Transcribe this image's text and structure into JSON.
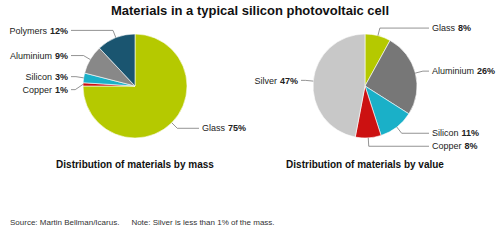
{
  "chart_data": [
    {
      "type": "pie",
      "title": "Materials in a typical silicon photovoltaic cell",
      "subtitle": "Distribution of materials by mass",
      "categories": [
        "Glass",
        "Copper",
        "Silicon",
        "Aluminium",
        "Polymers"
      ],
      "values": [
        75,
        1,
        3,
        9,
        12
      ],
      "value_labels": [
        "75%",
        "1%",
        "3%",
        "9%",
        "12%"
      ],
      "colors": [
        "#b5c900",
        "#cc1111",
        "#1ab0c8",
        "#888888",
        "#1a5570"
      ],
      "data_labels": true,
      "annotations": [
        "Source: Martin Bellman/Icarus.",
        "Note: Silver is less than 1% of the mass."
      ]
    },
    {
      "type": "pie",
      "subtitle": "Distribution of materials by value",
      "categories": [
        "Glass",
        "Aluminium",
        "Silicon",
        "Copper",
        "Silver"
      ],
      "values": [
        8,
        26,
        11,
        8,
        47
      ],
      "value_labels": [
        "8%",
        "26%",
        "11%",
        "8%",
        "47%"
      ],
      "colors": [
        "#b5c900",
        "#777777",
        "#1ab0c8",
        "#cc1111",
        "#c8c8c8"
      ],
      "data_labels": true
    }
  ]
}
